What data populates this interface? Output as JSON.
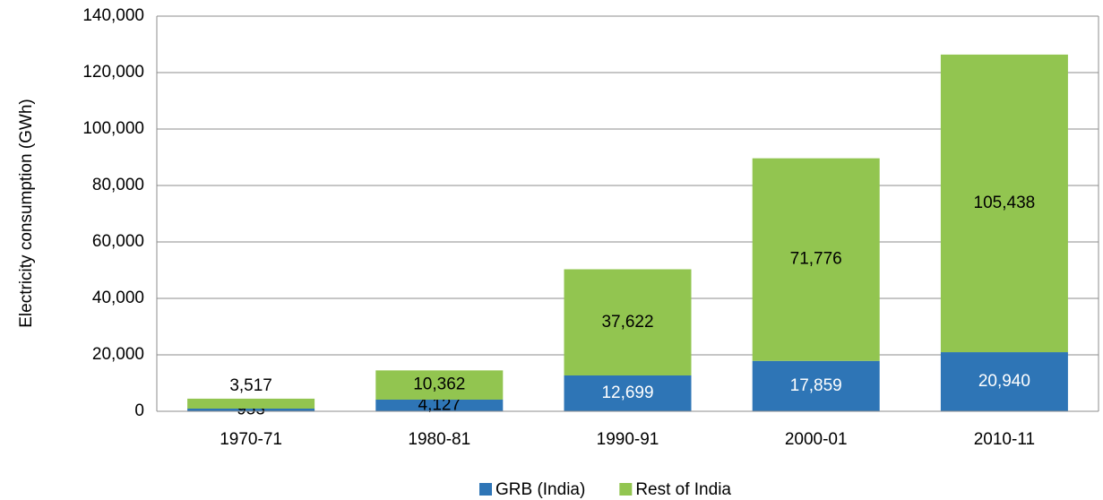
{
  "chart_data": {
    "type": "stacked-bar",
    "y_label": "Electricity consumption (GWh)",
    "categories": [
      "1970-71",
      "1980-81",
      "1990-91",
      "2000-01",
      "2010-11"
    ],
    "series": [
      {
        "name": "GRB (India)",
        "color": "#2e75b6",
        "values": [
          953,
          4127,
          12699,
          17859,
          20940
        ],
        "value_labels": [
          "953",
          "4,127",
          "12,699",
          "17,859",
          "20,940"
        ]
      },
      {
        "name": "Rest of India",
        "color": "#92c550",
        "values": [
          3517,
          10362,
          37622,
          71776,
          105438
        ],
        "value_labels": [
          "3,517",
          "10,362",
          "37,622",
          "71,776",
          "105,438"
        ]
      }
    ],
    "ylim": [
      0,
      140000
    ],
    "yticks": [
      0,
      {
        "value": 20000,
        "label": "20,000"
      },
      {
        "value": 40000,
        "label": "40,000"
      },
      {
        "value": 60000,
        "label": "60,000"
      },
      {
        "value": 80000,
        "label": "80,000"
      },
      {
        "value": 100000,
        "label": "100,000"
      },
      {
        "value": 120000,
        "label": "120,000"
      },
      {
        "value": 140000,
        "label": "140,000"
      }
    ],
    "grid": true,
    "legend": "bottom"
  }
}
